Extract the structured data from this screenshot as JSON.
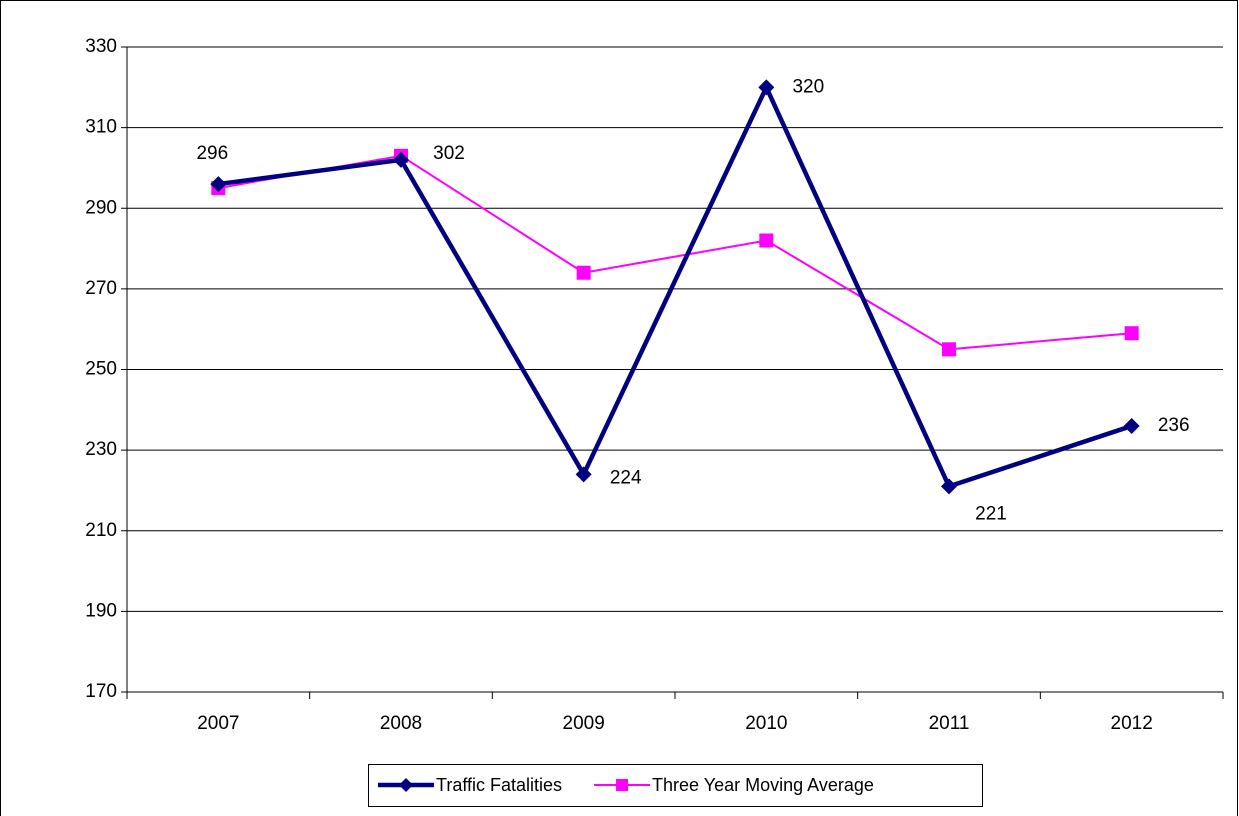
{
  "chart_data": {
    "type": "line",
    "categories": [
      "2007",
      "2008",
      "2009",
      "2010",
      "2011",
      "2012"
    ],
    "series": [
      {
        "name": "Traffic Fatalities",
        "color": "#000080",
        "marker": "diamond",
        "data_labels": true,
        "values": [
          296,
          302,
          224,
          320,
          221,
          236
        ]
      },
      {
        "name": "Three Year  Moving Average",
        "color": "#FF00FF",
        "marker": "square",
        "data_labels": false,
        "values": [
          295,
          303,
          274,
          282,
          255,
          259
        ]
      }
    ],
    "ylim": [
      170,
      330
    ],
    "yticks": [
      170,
      190,
      210,
      230,
      250,
      270,
      290,
      310,
      330
    ],
    "grid": true,
    "legend": "bottom"
  }
}
